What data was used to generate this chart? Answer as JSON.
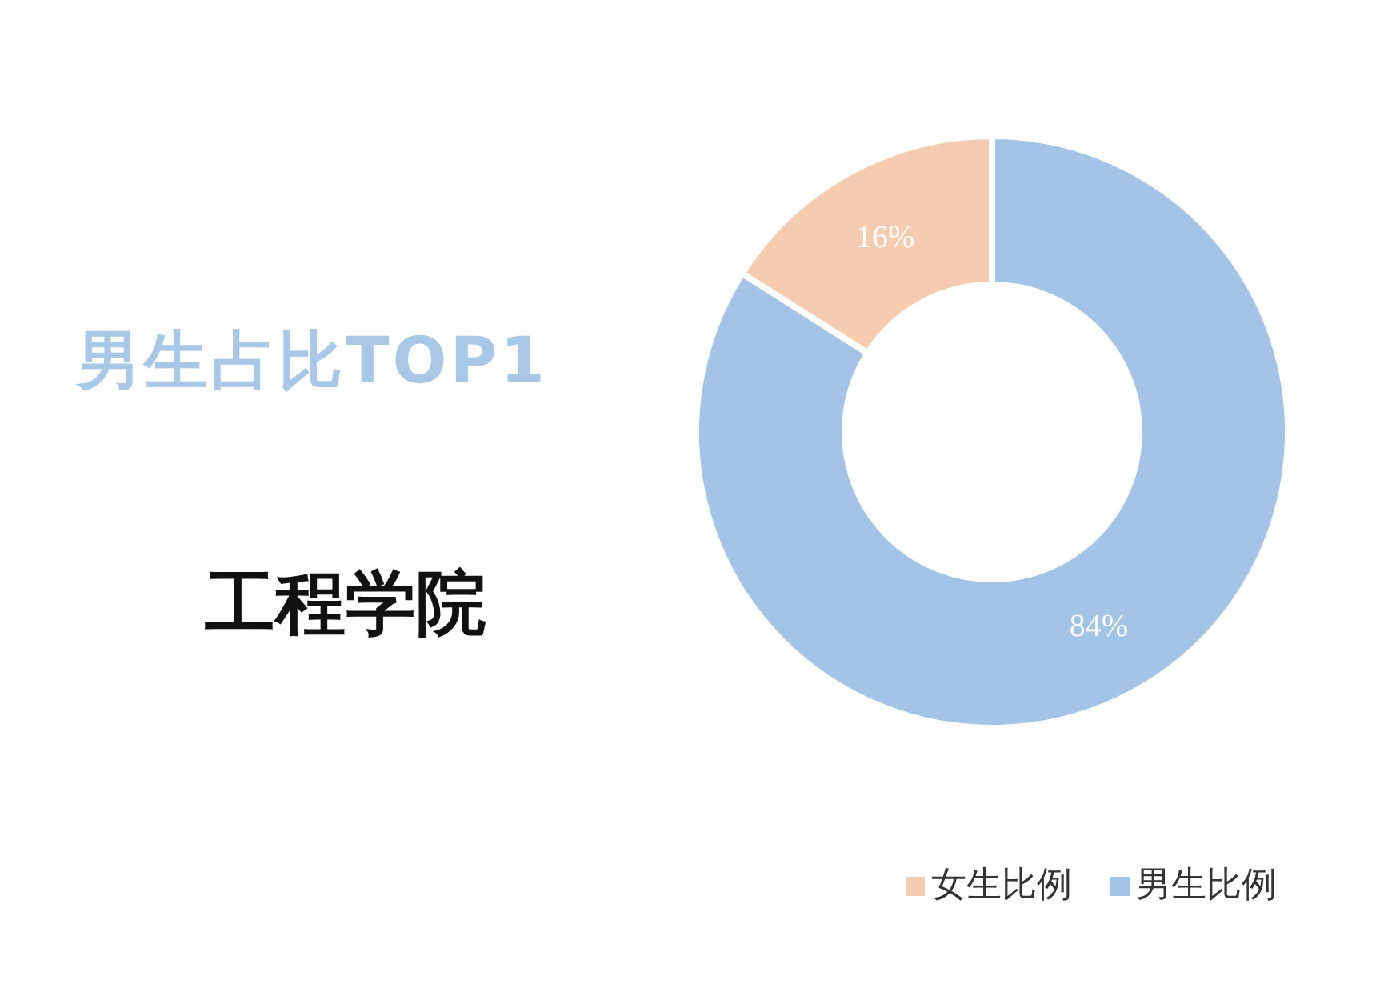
{
  "chart_data": {
    "type": "donut",
    "title": "男生占比TOP1",
    "subtitle": "工程学院",
    "categories": [
      "男生比例",
      "女生比例"
    ],
    "values": [
      84,
      16
    ],
    "colors": [
      "#a3c4e6",
      "#f6ccb0"
    ],
    "value_labels": [
      "84%",
      "16%"
    ],
    "legend": "bottom right"
  }
}
